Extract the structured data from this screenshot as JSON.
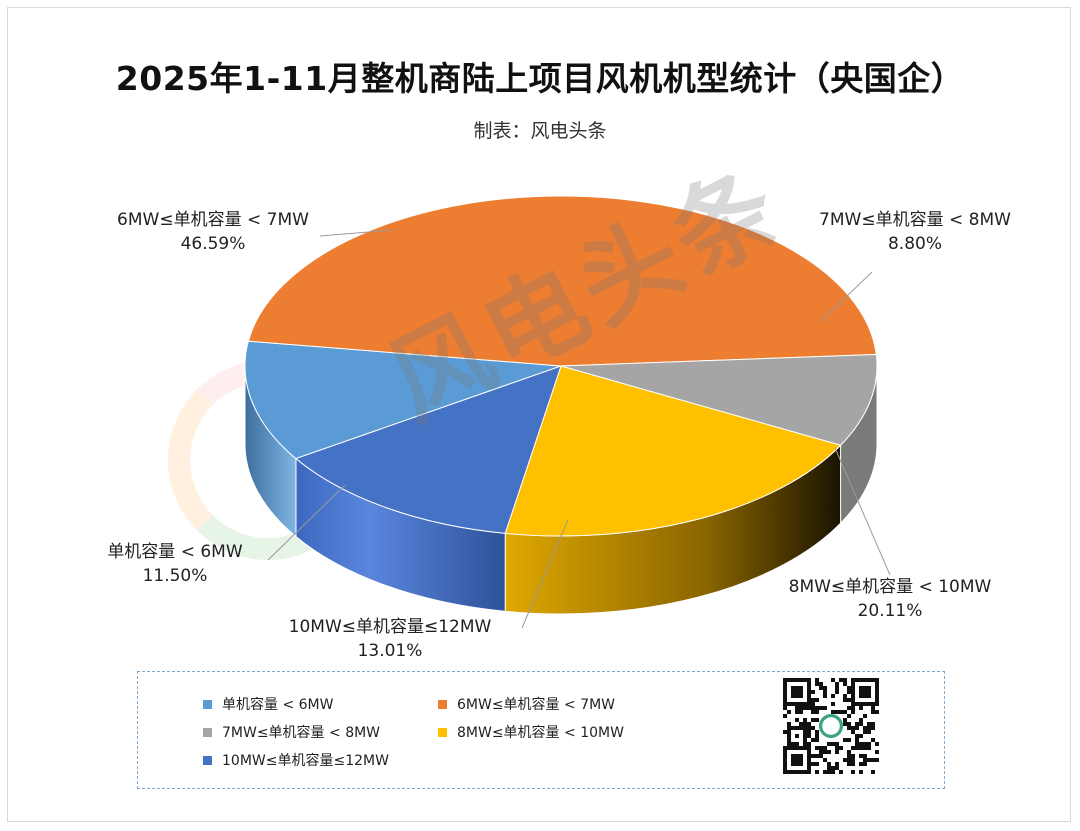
{
  "title": "2025年1-11月整机商陆上项目风机机型统计（央国企）",
  "subtitle": "制表：风电头条",
  "watermark": "风电头条",
  "chart_data": {
    "type": "pie",
    "title": "2025年1-11月整机商陆上项目风机机型统计（央国企）",
    "subtitle": "制表：风电头条",
    "unit": "%",
    "slices": [
      {
        "label": "单机容量 < 6MW",
        "value": 11.5,
        "value_label": "11.50%",
        "color": "#5b9bd5"
      },
      {
        "label": "6MW≤单机容量 < 7MW",
        "value": 46.59,
        "value_label": "46.59%",
        "color": "#ed7d31"
      },
      {
        "label": "7MW≤单机容量 < 8MW",
        "value": 8.8,
        "value_label": "8.80%",
        "color": "#a5a5a5"
      },
      {
        "label": "8MW≤单机容量 < 10MW",
        "value": 20.11,
        "value_label": "20.11%",
        "color": "#ffc000"
      },
      {
        "label": "10MW≤单机容量≤12MW",
        "value": 13.01,
        "value_label": "13.01%",
        "color": "#4472c4"
      }
    ],
    "legend_position": "bottom"
  }
}
